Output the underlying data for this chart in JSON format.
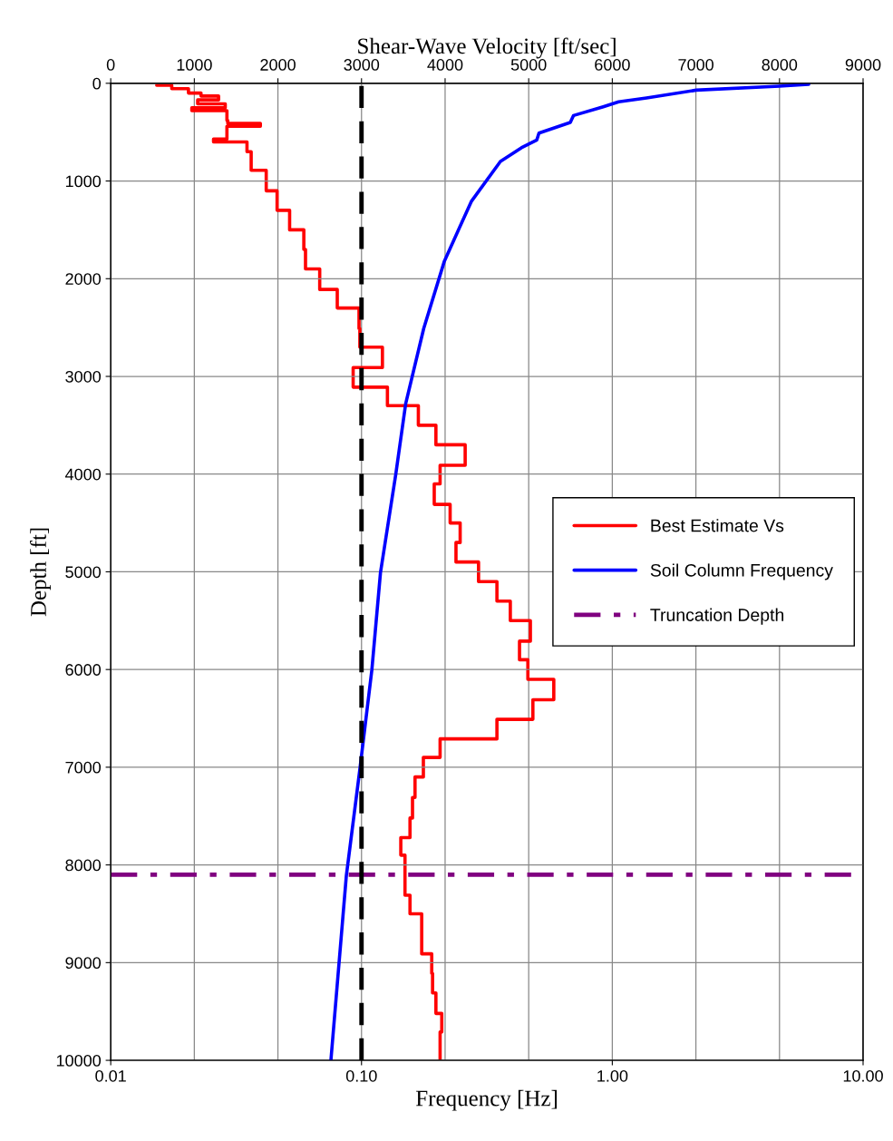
{
  "chart_data": {
    "type": "line",
    "xlabel": "Frequency [Hz]",
    "x2label": "Shear-Wave Velocity [ft/sec]",
    "ylabel": "Depth [ft]",
    "log": "x",
    "xlim": [
      0.01,
      10
    ],
    "xticks": [
      {
        "value": 0.01,
        "label": "0.01"
      },
      {
        "value": 0.1,
        "label": "0.10"
      },
      {
        "value": 1,
        "label": "1.00"
      },
      {
        "value": 10,
        "label": "10.00"
      }
    ],
    "x2lim": [
      0,
      9000
    ],
    "x2ticks": [
      0,
      1000,
      2000,
      3000,
      4000,
      5000,
      6000,
      7000,
      8000,
      9000
    ],
    "ylim": [
      10000,
      0
    ],
    "yticks": [
      0,
      1000,
      2000,
      3000,
      4000,
      5000,
      6000,
      7000,
      8000,
      9000,
      10000
    ],
    "grid": true,
    "legend": "right",
    "line_style": "solid",
    "marker": "none",
    "series": [
      {
        "name": "Best Estimate Vs",
        "color": "#ff0000",
        "axis": "x2",
        "x": [
          550,
          730,
          730,
          930,
          930,
          1080,
          1080,
          1290,
          1290,
          1040,
          1040,
          1370,
          1370,
          970,
          970,
          1390,
          1390,
          1400,
          1400,
          1790,
          1790,
          1390,
          1390,
          1230,
          1230,
          1630,
          1630,
          1680,
          1680,
          1860,
          1860,
          1990,
          1990,
          2140,
          2140,
          2310,
          2310,
          2330,
          2330,
          2500,
          2500,
          2710,
          2710,
          2970,
          2970,
          2980,
          2980,
          3250,
          3250,
          2900,
          2900,
          3310,
          3310,
          3680,
          3680,
          3890,
          3890,
          4240,
          4240,
          3940,
          3940,
          3870,
          3870,
          4060,
          4060,
          4180,
          4180,
          4130,
          4130,
          4400,
          4400,
          4620,
          4620,
          4780,
          4780,
          5020,
          5020,
          4890,
          4890,
          4990,
          4990,
          5300,
          5300,
          5050,
          5050,
          4620,
          4620,
          3940,
          3940,
          3740,
          3740,
          3640,
          3640,
          3610,
          3610,
          3580,
          3580,
          3470,
          3470,
          3520,
          3520,
          3580,
          3580,
          3720,
          3720,
          3840,
          3840,
          3850,
          3850,
          3890,
          3890,
          3960,
          3960,
          3940,
          3940
        ],
        "values": [
          20,
          20,
          55,
          55,
          100,
          100,
          130,
          130,
          170,
          170,
          210,
          210,
          250,
          250,
          280,
          280,
          380,
          380,
          410,
          410,
          440,
          440,
          570,
          570,
          600,
          600,
          700,
          700,
          890,
          890,
          1100,
          1100,
          1300,
          1300,
          1500,
          1500,
          1700,
          1700,
          1900,
          1900,
          2110,
          2110,
          2300,
          2300,
          2510,
          2510,
          2700,
          2700,
          2910,
          2910,
          3110,
          3110,
          3300,
          3300,
          3500,
          3500,
          3700,
          3700,
          3910,
          3910,
          4100,
          4100,
          4310,
          4310,
          4500,
          4500,
          4700,
          4700,
          4900,
          4900,
          5100,
          5100,
          5300,
          5300,
          5500,
          5500,
          5710,
          5710,
          5900,
          5900,
          6100,
          6100,
          6310,
          6310,
          6510,
          6510,
          6710,
          6710,
          6900,
          6900,
          7100,
          7100,
          7310,
          7310,
          7520,
          7520,
          7720,
          7720,
          7900,
          7900,
          8310,
          8310,
          8500,
          8500,
          8910,
          8910,
          9110,
          9110,
          9310,
          9310,
          9520,
          9520,
          9710,
          9710,
          10000
        ]
      },
      {
        "name": "Soil Column Frequency",
        "color": "#0000ff",
        "x": [
          6.07,
          4.64,
          2.16,
          1.37,
          1.06,
          0.92,
          0.7,
          0.68,
          0.51,
          0.5,
          0.434,
          0.358,
          0.274,
          0.214,
          0.177,
          0.15,
          0.137,
          0.119,
          0.11,
          0.0986,
          0.087,
          0.0755
        ],
        "values": [
          10,
          30,
          70,
          150,
          190,
          240,
          330,
          400,
          510,
          580,
          660,
          800,
          1210,
          1820,
          2510,
          3280,
          4000,
          5010,
          6000,
          7010,
          8110,
          10000
        ]
      }
    ],
    "ref_lines": [
      {
        "axis": "x",
        "value": 0.1,
        "color": "#000000",
        "line_style": "dashed"
      },
      {
        "axis": "y",
        "value": 8100,
        "label": "Truncation Depth",
        "color": "#800080",
        "line_style": "dashdot"
      }
    ]
  }
}
